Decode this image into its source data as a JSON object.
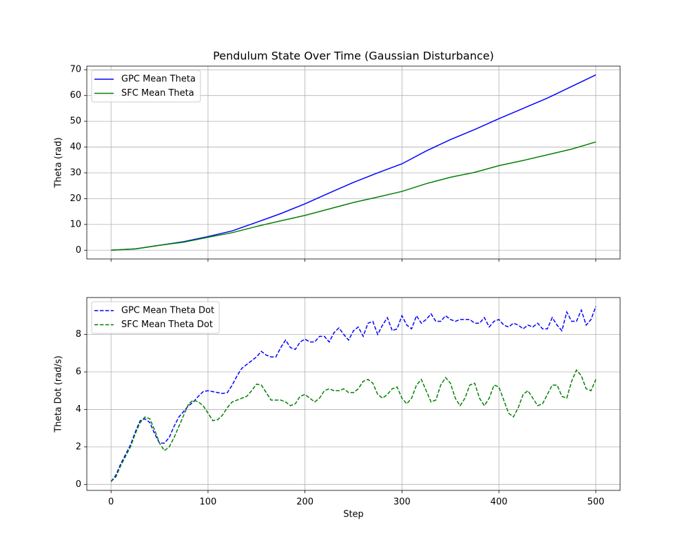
{
  "chart_data": [
    {
      "type": "line",
      "title": "Pendulum State Over Time (Gaussian Disturbance)",
      "y_label": "Theta (rad)",
      "x": [
        0,
        25,
        50,
        75,
        100,
        125,
        150,
        175,
        200,
        225,
        250,
        275,
        300,
        325,
        350,
        375,
        400,
        425,
        450,
        475,
        500
      ],
      "series": [
        {
          "name": "GPC Mean Theta",
          "color": "#0000ff",
          "linestyle": "solid",
          "values": [
            0,
            0.5,
            1.9,
            3.3,
            5.3,
            7.5,
            10.8,
            14.2,
            18.0,
            22.2,
            26.3,
            30.0,
            33.5,
            38.5,
            42.9,
            46.8,
            51.0,
            55.0,
            59.0,
            63.5,
            68
          ]
        },
        {
          "name": "SFC Mean Theta",
          "color": "#008000",
          "linestyle": "solid",
          "values": [
            0,
            0.5,
            1.9,
            3.1,
            5.0,
            6.8,
            9.2,
            11.4,
            13.5,
            16.0,
            18.5,
            20.6,
            22.8,
            25.8,
            28.3,
            30.2,
            32.8,
            34.8,
            37.0,
            39.2,
            42
          ]
        }
      ],
      "xlim": [
        -25,
        525
      ],
      "ylim": [
        -3.4,
        71.4
      ],
      "yticks": [
        0,
        10,
        20,
        30,
        40,
        50,
        60,
        70
      ],
      "grid": true,
      "legend": "upper-left"
    },
    {
      "type": "line",
      "x_label": "Step",
      "y_label": "Theta Dot (rad/s)",
      "x": [
        0,
        5,
        10,
        15,
        20,
        25,
        30,
        35,
        40,
        45,
        50,
        55,
        60,
        65,
        70,
        75,
        80,
        85,
        90,
        95,
        100,
        105,
        110,
        115,
        120,
        125,
        130,
        135,
        140,
        145,
        150,
        155,
        160,
        165,
        170,
        175,
        180,
        185,
        190,
        195,
        200,
        205,
        210,
        215,
        220,
        225,
        230,
        235,
        240,
        245,
        250,
        255,
        260,
        265,
        270,
        275,
        280,
        285,
        290,
        295,
        300,
        305,
        310,
        315,
        320,
        325,
        330,
        335,
        340,
        345,
        350,
        355,
        360,
        365,
        370,
        375,
        380,
        385,
        390,
        395,
        400,
        405,
        410,
        415,
        420,
        425,
        430,
        435,
        440,
        445,
        450,
        455,
        460,
        465,
        470,
        475,
        480,
        485,
        490,
        495,
        500
      ],
      "series": [
        {
          "name": "GPC Mean Theta Dot",
          "color": "#0000ff",
          "linestyle": "dashed",
          "values": [
            0.15,
            0.5,
            1.1,
            1.6,
            2.1,
            2.8,
            3.4,
            3.5,
            3.3,
            2.7,
            2.2,
            2.2,
            2.5,
            3.1,
            3.6,
            3.9,
            4.2,
            4.4,
            4.7,
            4.95,
            5.0,
            4.95,
            4.9,
            4.85,
            4.9,
            5.3,
            5.8,
            6.2,
            6.4,
            6.6,
            6.8,
            7.1,
            6.9,
            6.8,
            6.8,
            7.3,
            7.7,
            7.3,
            7.2,
            7.6,
            7.75,
            7.6,
            7.6,
            7.9,
            7.9,
            7.6,
            8.1,
            8.35,
            8.0,
            7.7,
            8.2,
            8.4,
            7.9,
            8.6,
            8.7,
            8.0,
            8.5,
            8.9,
            8.2,
            8.3,
            9.0,
            8.5,
            8.3,
            9.0,
            8.6,
            8.8,
            9.1,
            8.7,
            8.7,
            9.0,
            8.8,
            8.7,
            8.8,
            8.8,
            8.8,
            8.6,
            8.6,
            8.9,
            8.4,
            8.7,
            8.8,
            8.5,
            8.4,
            8.6,
            8.5,
            8.3,
            8.5,
            8.4,
            8.6,
            8.3,
            8.3,
            8.9,
            8.5,
            8.2,
            9.2,
            8.7,
            8.7,
            9.3,
            8.5,
            8.8,
            9.5
          ]
        },
        {
          "name": "SFC Mean Theta Dot",
          "color": "#008000",
          "linestyle": "dashed",
          "values": [
            0.15,
            0.4,
            1.0,
            1.5,
            2.0,
            2.7,
            3.3,
            3.6,
            3.5,
            2.9,
            2.2,
            1.8,
            2.0,
            2.5,
            3.1,
            3.7,
            4.3,
            4.5,
            4.4,
            4.2,
            3.8,
            3.4,
            3.45,
            3.7,
            4.1,
            4.4,
            4.5,
            4.6,
            4.7,
            5.0,
            5.35,
            5.3,
            4.9,
            4.5,
            4.5,
            4.5,
            4.4,
            4.2,
            4.3,
            4.7,
            4.8,
            4.6,
            4.4,
            4.6,
            5.0,
            5.1,
            5.0,
            5.0,
            5.1,
            4.9,
            4.9,
            5.1,
            5.5,
            5.6,
            5.4,
            4.8,
            4.6,
            4.8,
            5.1,
            5.2,
            4.6,
            4.3,
            4.6,
            5.3,
            5.6,
            5.0,
            4.4,
            4.5,
            5.3,
            5.7,
            5.4,
            4.6,
            4.2,
            4.6,
            5.3,
            5.4,
            4.6,
            4.2,
            4.6,
            5.3,
            5.2,
            4.5,
            3.8,
            3.6,
            4.1,
            4.8,
            5.0,
            4.6,
            4.2,
            4.3,
            4.8,
            5.3,
            5.3,
            4.7,
            4.6,
            5.5,
            6.1,
            5.8,
            5.1,
            5.0,
            5.6
          ]
        }
      ],
      "xlim": [
        -25,
        525
      ],
      "xticks": [
        0,
        100,
        200,
        300,
        400,
        500
      ],
      "ylim": [
        -0.32,
        9.97
      ],
      "yticks": [
        0,
        2,
        4,
        6,
        8
      ],
      "grid": true,
      "legend": "upper-left"
    }
  ]
}
